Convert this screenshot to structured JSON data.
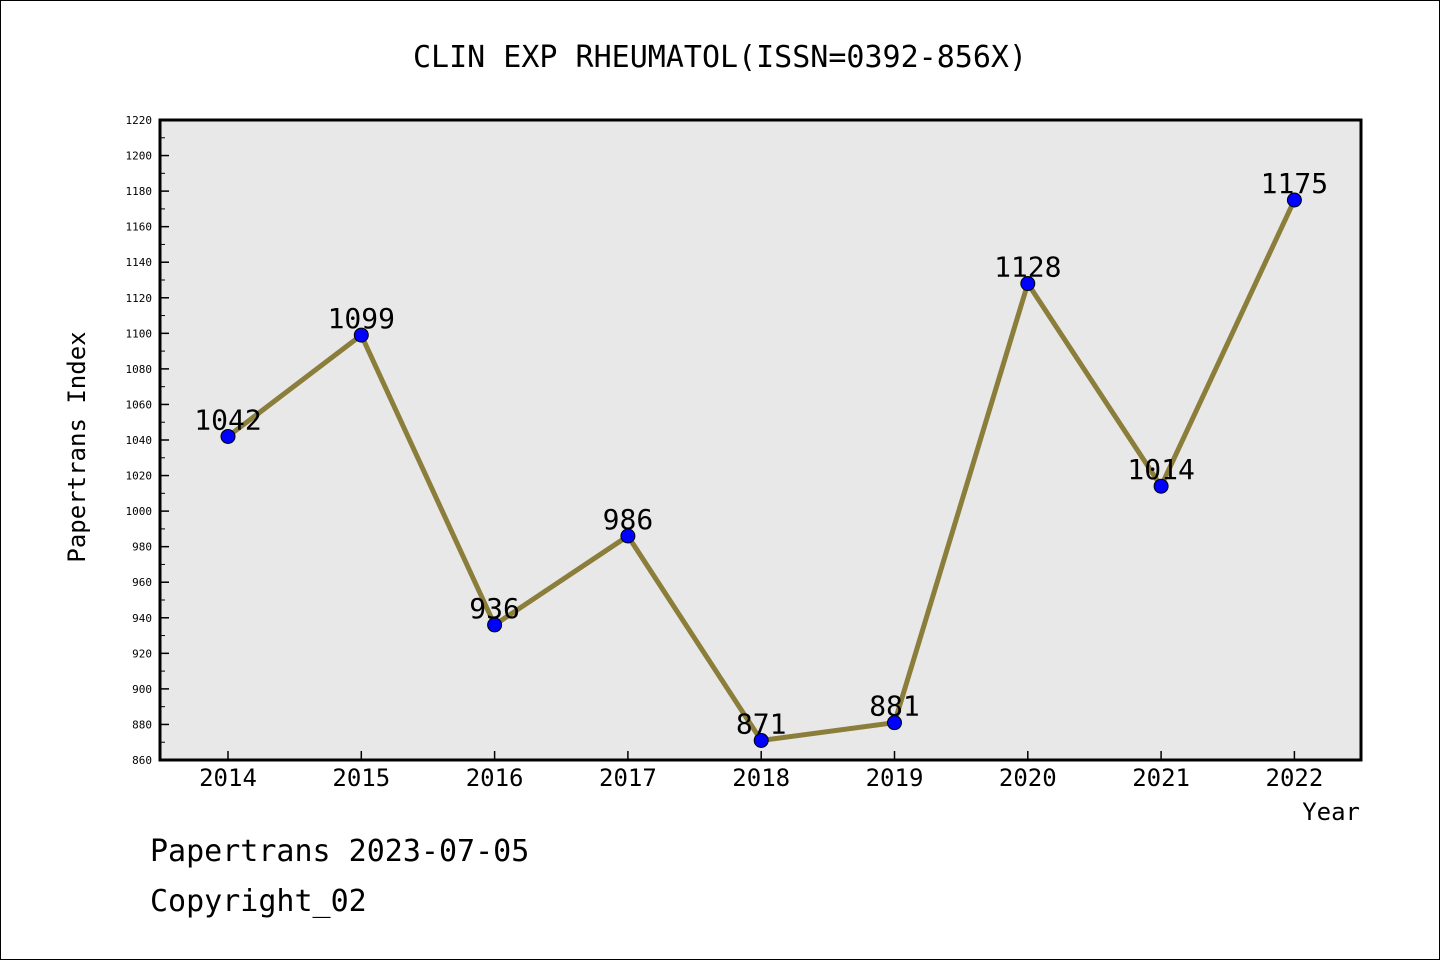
{
  "footer": {
    "line1": "Papertrans 2023-07-05",
    "line2": "Copyright_02"
  },
  "chart_data": {
    "type": "line",
    "title": "CLIN EXP RHEUMATOL(ISSN=0392-856X)",
    "xlabel": "Year",
    "ylabel": "Papertrans Index",
    "categories": [
      "2014",
      "2015",
      "2016",
      "2017",
      "2018",
      "2019",
      "2020",
      "2021",
      "2022"
    ],
    "values": [
      1042,
      1099,
      936,
      986,
      871,
      881,
      1128,
      1014,
      1175
    ],
    "data_labels": [
      "1042",
      "1099",
      "936",
      "986",
      "871",
      "881",
      "1128",
      "1014",
      "1175"
    ],
    "ylim": [
      860,
      1220
    ],
    "yticks": [
      860,
      880,
      900,
      920,
      940,
      960,
      980,
      1000,
      1020,
      1040,
      1060,
      1080,
      1100,
      1120,
      1140,
      1160,
      1180,
      1200,
      1220
    ],
    "grid": false,
    "line_color": "#8B7D3A",
    "marker_color": "#0000FF",
    "plot_background": "#E8E8E8"
  }
}
